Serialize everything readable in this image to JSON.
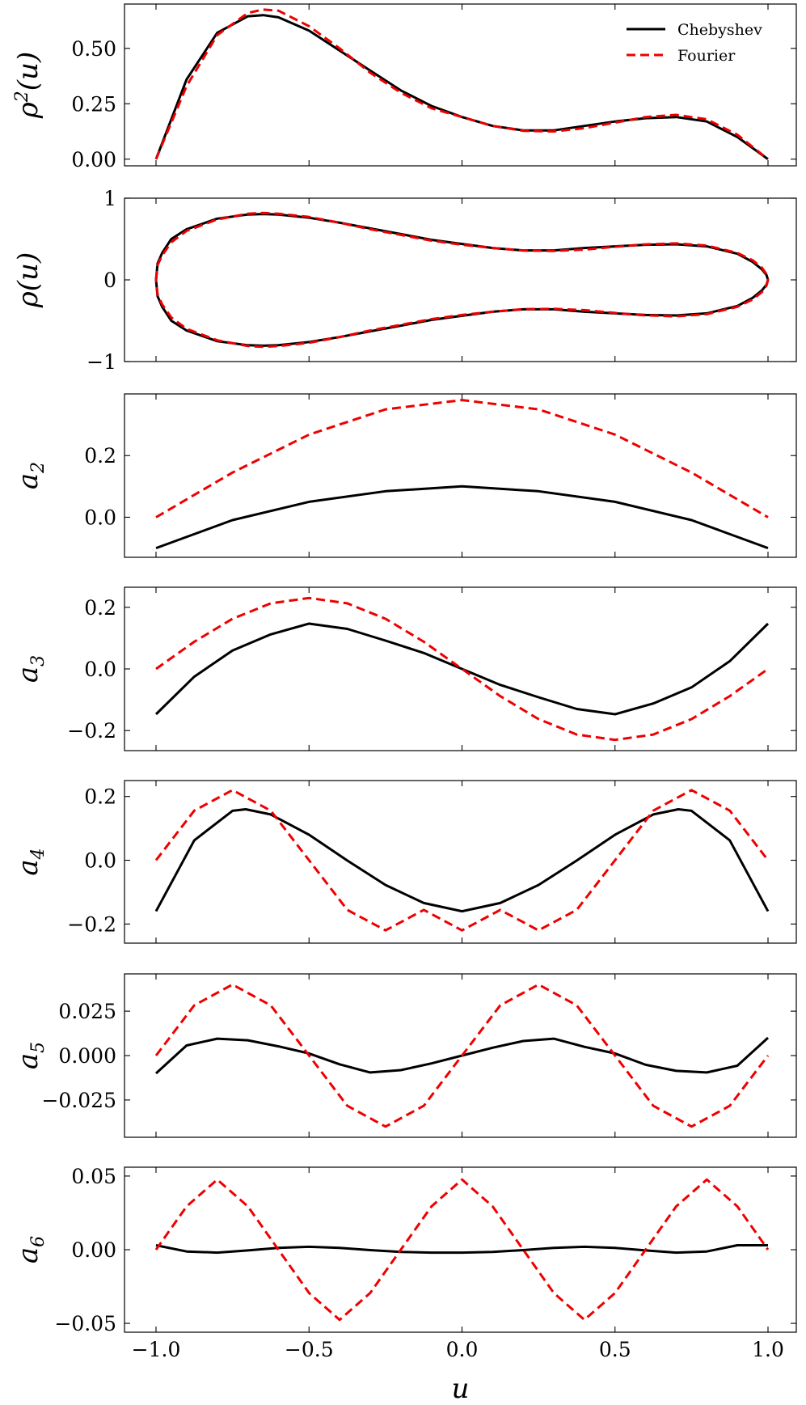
{
  "chart_data": {
    "type": "line",
    "xlabel": "u",
    "x_range": [
      -1.0,
      1.0
    ],
    "x_tick_labels": [
      "−1.0",
      "−0.5",
      "0.0",
      "0.5",
      "1.0"
    ],
    "x_ticks": [
      -1.0,
      -0.5,
      0.0,
      0.5,
      1.0
    ],
    "legend": {
      "placement": "top-right",
      "entries": [
        {
          "name": "Chebyshev",
          "color": "#000000",
          "style": "solid"
        },
        {
          "name": "Fourier",
          "color": "#ee0000",
          "style": "dashed"
        }
      ]
    },
    "panels": [
      {
        "id": "rho2",
        "ylabel": "ρ²(u)",
        "ylabel_main": "ρ",
        "ylabel_sup": "2",
        "ylabel_tail": "(u)",
        "ylim": [
          -0.03,
          0.7
        ],
        "y_ticks": [
          0.0,
          0.25,
          0.5
        ],
        "y_tick_labels": [
          "0.00",
          "0.25",
          "0.50"
        ],
        "series": [
          {
            "name": "Chebyshev",
            "x": [
              -1,
              -0.9,
              -0.8,
              -0.7,
              -0.65,
              -0.6,
              -0.5,
              -0.4,
              -0.3,
              -0.2,
              -0.1,
              0,
              0.1,
              0.2,
              0.3,
              0.4,
              0.5,
              0.6,
              0.7,
              0.8,
              0.9,
              1
            ],
            "y": [
              0.0,
              0.36,
              0.57,
              0.645,
              0.65,
              0.64,
              0.58,
              0.49,
              0.4,
              0.31,
              0.24,
              0.19,
              0.15,
              0.13,
              0.13,
              0.15,
              0.17,
              0.185,
              0.19,
              0.17,
              0.1,
              0.0
            ]
          },
          {
            "name": "Fourier",
            "x": [
              -1,
              -0.9,
              -0.8,
              -0.7,
              -0.65,
              -0.6,
              -0.5,
              -0.4,
              -0.3,
              -0.2,
              -0.1,
              0,
              0.1,
              0.2,
              0.3,
              0.4,
              0.5,
              0.6,
              0.7,
              0.8,
              0.9,
              1
            ],
            "y": [
              0.0,
              0.33,
              0.56,
              0.66,
              0.675,
              0.67,
              0.6,
              0.5,
              0.39,
              0.3,
              0.23,
              0.19,
              0.15,
              0.128,
              0.125,
              0.14,
              0.165,
              0.19,
              0.2,
              0.18,
              0.11,
              0.0
            ]
          }
        ]
      },
      {
        "id": "rho",
        "ylabel": "ρ(u)",
        "ylabel_main": "ρ",
        "ylabel_sup": "",
        "ylabel_tail": "(u)",
        "ylim": [
          -1.0,
          1.0
        ],
        "y_ticks": [
          -1,
          0,
          1
        ],
        "y_tick_labels": [
          "−1",
          "0",
          "1"
        ],
        "mirror": true,
        "series": [
          {
            "name": "Chebyshev",
            "x": [
              -1,
              -0.995,
              -0.98,
              -0.95,
              -0.9,
              -0.8,
              -0.7,
              -0.65,
              -0.6,
              -0.5,
              -0.4,
              -0.3,
              -0.2,
              -0.1,
              0,
              0.1,
              0.2,
              0.3,
              0.4,
              0.5,
              0.6,
              0.7,
              0.8,
              0.9,
              0.95,
              0.98,
              0.995,
              1
            ],
            "y": [
              0.0,
              0.2,
              0.33,
              0.5,
              0.62,
              0.75,
              0.8,
              0.806,
              0.8,
              0.76,
              0.7,
              0.63,
              0.56,
              0.49,
              0.44,
              0.39,
              0.36,
              0.36,
              0.39,
              0.41,
              0.43,
              0.436,
              0.41,
              0.32,
              0.22,
              0.13,
              0.06,
              0.0
            ]
          },
          {
            "name": "Fourier",
            "x": [
              -1,
              -0.995,
              -0.98,
              -0.95,
              -0.9,
              -0.8,
              -0.7,
              -0.65,
              -0.6,
              -0.5,
              -0.4,
              -0.3,
              -0.2,
              -0.1,
              0,
              0.1,
              0.2,
              0.3,
              0.4,
              0.5,
              0.6,
              0.7,
              0.8,
              0.9,
              0.95,
              0.98,
              0.995,
              1
            ],
            "y": [
              0.0,
              0.18,
              0.3,
              0.46,
              0.6,
              0.74,
              0.81,
              0.82,
              0.81,
              0.77,
              0.7,
              0.62,
              0.55,
              0.48,
              0.43,
              0.39,
              0.358,
              0.354,
              0.37,
              0.405,
              0.435,
              0.447,
              0.42,
              0.33,
              0.24,
              0.15,
              0.07,
              0.0
            ]
          }
        ]
      },
      {
        "id": "a2",
        "ylabel": "a₂",
        "ylabel_main": "a",
        "ylabel_sub": "2",
        "ylim": [
          -0.13,
          0.4
        ],
        "y_ticks": [
          0.0,
          0.2
        ],
        "y_tick_labels": [
          "0.0",
          "0.2"
        ],
        "series": [
          {
            "name": "Chebyshev",
            "x": [
              -1,
              -0.75,
              -0.5,
              -0.25,
              0,
              0.25,
              0.5,
              0.75,
              1
            ],
            "y": [
              -0.1,
              -0.0094,
              0.05,
              0.0844,
              0.1,
              0.0844,
              0.05,
              -0.0094,
              -0.1
            ]
          },
          {
            "name": "Fourier",
            "x": [
              -1,
              -0.75,
              -0.5,
              -0.25,
              0,
              0.25,
              0.5,
              0.75,
              1
            ],
            "y": [
              0.0,
              0.145,
              0.268,
              0.35,
              0.38,
              0.35,
              0.268,
              0.145,
              0.0
            ]
          }
        ]
      },
      {
        "id": "a3",
        "ylabel": "a₃",
        "ylabel_main": "a",
        "ylabel_sub": "3",
        "ylim": [
          -0.265,
          0.265
        ],
        "y_ticks": [
          -0.2,
          0.0,
          0.2
        ],
        "y_tick_labels": [
          "−0.2",
          "0.0",
          "0.2"
        ],
        "series": [
          {
            "name": "Chebyshev",
            "x": [
              -1,
              -0.875,
              -0.75,
              -0.625,
              -0.5,
              -0.375,
              -0.25,
              -0.125,
              0,
              0.125,
              0.25,
              0.375,
              0.5,
              0.625,
              0.75,
              0.875,
              1
            ],
            "y": [
              -0.147,
              -0.0253,
              0.0599,
              0.112,
              0.147,
              0.13,
              0.0919,
              0.0517,
              0.0,
              -0.0517,
              -0.0919,
              -0.13,
              -0.147,
              -0.112,
              -0.0599,
              0.0253,
              0.147
            ]
          },
          {
            "name": "Fourier",
            "x": [
              -1,
              -0.875,
              -0.75,
              -0.625,
              -0.5,
              -0.375,
              -0.25,
              -0.125,
              0,
              0.125,
              0.25,
              0.375,
              0.5,
              0.625,
              0.75,
              0.875,
              1
            ],
            "y": [
              0.0,
              0.0881,
              0.1628,
              0.2127,
              0.23,
              0.2127,
              0.1628,
              0.0881,
              0.0,
              -0.0881,
              -0.1628,
              -0.2127,
              -0.23,
              -0.2127,
              -0.1628,
              -0.0881,
              0.0
            ]
          }
        ]
      },
      {
        "id": "a4",
        "ylabel": "a₄",
        "ylabel_main": "a",
        "ylabel_sub": "4",
        "ylim": [
          -0.26,
          0.25
        ],
        "y_ticks": [
          -0.2,
          0.0,
          0.2
        ],
        "y_tick_labels": [
          "−0.2",
          "0.0",
          "0.2"
        ],
        "series": [
          {
            "name": "Chebyshev",
            "x": [
              -1,
              -0.875,
              -0.75,
              -0.707,
              -0.625,
              -0.5,
              -0.375,
              -0.25,
              -0.125,
              0,
              0.125,
              0.25,
              0.375,
              0.5,
              0.625,
              0.707,
              0.75,
              0.875,
              1
            ],
            "y": [
              -0.16,
              0.0625,
              0.155,
              0.16,
              0.1437,
              0.08,
              -0.0009,
              -0.0775,
              -0.1341,
              -0.16,
              -0.1341,
              -0.0775,
              -0.0009,
              0.08,
              0.1437,
              0.16,
              0.155,
              0.0625,
              -0.16
            ]
          },
          {
            "name": "Fourier",
            "x": [
              -1,
              -0.875,
              -0.75,
              -0.625,
              -0.5,
              -0.375,
              -0.25,
              -0.125,
              0,
              0.125,
              0.25,
              0.375,
              0.5,
              0.625,
              0.75,
              0.875,
              1
            ],
            "y": [
              0.0,
              0.1556,
              0.22,
              0.1556,
              0.0,
              -0.1556,
              -0.22,
              -0.1556,
              -0.22,
              -0.1556,
              -0.22,
              -0.1556,
              0.0,
              0.1556,
              0.22,
              0.1556,
              0.0
            ]
          }
        ]
      },
      {
        "id": "a5",
        "ylabel": "a₅",
        "ylabel_main": "a",
        "ylabel_sub": "5",
        "ylim": [
          -0.046,
          0.046
        ],
        "y_ticks": [
          -0.025,
          0.0,
          0.025
        ],
        "y_tick_labels": [
          "−0.025",
          "0.000",
          "0.025"
        ],
        "series": [
          {
            "name": "Chebyshev",
            "x": [
              -1,
              -0.9,
              -0.8,
              -0.7,
              -0.6,
              -0.5,
              -0.4,
              -0.3,
              -0.2,
              -0.1,
              0,
              0.1,
              0.2,
              0.3,
              0.4,
              0.5,
              0.6,
              0.7,
              0.8,
              0.9,
              1
            ],
            "y": [
              -0.01,
              0.0057,
              0.0095,
              0.0086,
              0.0052,
              0.0012,
              -0.0049,
              -0.0095,
              -0.0082,
              -0.0044,
              0.0,
              0.0044,
              0.0082,
              0.0095,
              0.0049,
              0.0012,
              -0.0052,
              -0.0086,
              -0.0095,
              -0.0057,
              0.01
            ]
          },
          {
            "name": "Fourier",
            "x": [
              -1,
              -0.875,
              -0.75,
              -0.625,
              -0.5,
              -0.375,
              -0.25,
              -0.125,
              0,
              0.125,
              0.25,
              0.375,
              0.5,
              0.625,
              0.75,
              0.875,
              1
            ],
            "y": [
              0.0,
              0.0283,
              0.04,
              0.0283,
              0.0,
              -0.0283,
              -0.04,
              -0.0283,
              0.0,
              0.0283,
              0.04,
              0.0283,
              0.0,
              -0.0283,
              -0.04,
              -0.0283,
              0.0
            ]
          }
        ]
      },
      {
        "id": "a6",
        "ylabel": "a₆",
        "ylabel_main": "a",
        "ylabel_sub": "6",
        "ylim": [
          -0.056,
          0.056
        ],
        "y_ticks": [
          -0.05,
          0.0,
          0.05
        ],
        "y_tick_labels": [
          "−0.05",
          "0.00",
          "0.05"
        ],
        "series": [
          {
            "name": "Chebyshev",
            "x": [
              -1,
              -0.9,
              -0.8,
              -0.7,
              -0.6,
              -0.5,
              -0.4,
              -0.3,
              -0.2,
              -0.1,
              0,
              0.1,
              0.2,
              0.3,
              0.4,
              0.5,
              0.6,
              0.7,
              0.8,
              0.9,
              1
            ],
            "y": [
              0.003,
              -0.0012,
              -0.002,
              -0.0005,
              0.0012,
              0.002,
              0.0012,
              -0.0003,
              -0.0015,
              -0.002,
              -0.002,
              -0.0015,
              -0.0003,
              0.0012,
              0.002,
              0.0012,
              -0.0005,
              -0.002,
              -0.0012,
              0.003,
              0.003
            ]
          },
          {
            "name": "Fourier",
            "x": [
              -1,
              -0.9,
              -0.8,
              -0.7,
              -0.6,
              -0.5,
              -0.4,
              -0.3,
              -0.2,
              -0.1,
              0,
              0.1,
              0.2,
              0.3,
              0.4,
              0.5,
              0.6,
              0.7,
              0.8,
              0.9,
              1
            ],
            "y": [
              0.0,
              0.0294,
              0.0476,
              0.0294,
              0.0,
              -0.0294,
              -0.0476,
              -0.0294,
              0.0,
              0.0294,
              0.0476,
              0.0294,
              0.0,
              -0.0294,
              -0.0476,
              -0.0294,
              0.0,
              0.0294,
              0.0476,
              0.0294,
              0.0
            ]
          }
        ]
      }
    ]
  }
}
